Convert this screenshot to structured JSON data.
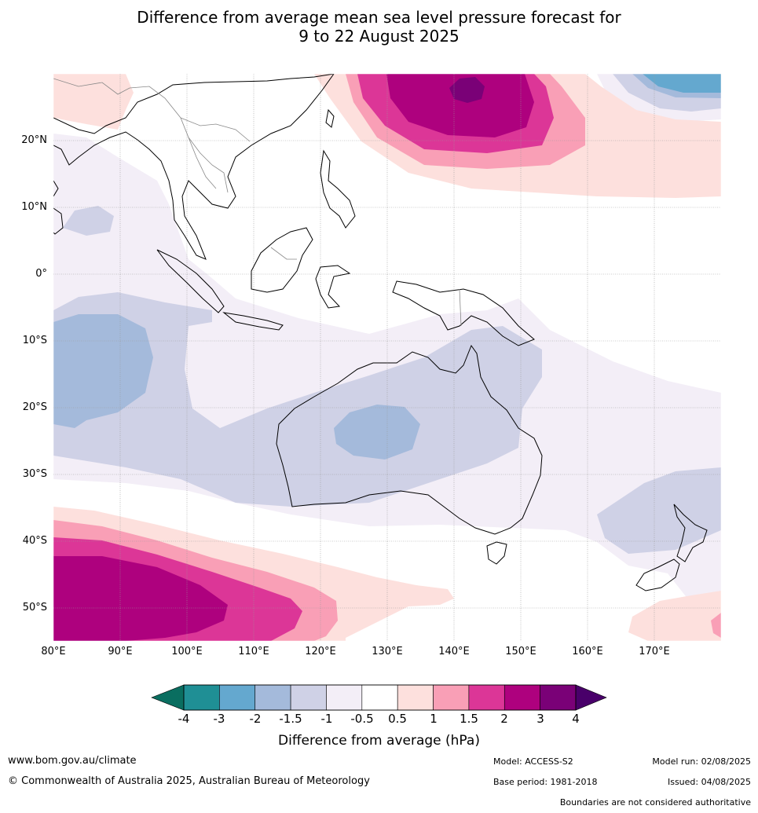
{
  "title": {
    "line1": "Difference from average mean sea level pressure forecast for",
    "line2": "9 to 22 August 2025"
  },
  "map": {
    "lat_labels": [
      "20°N",
      "10°N",
      "0°",
      "10°S",
      "20°S",
      "30°S",
      "40°S",
      "50°S"
    ],
    "lon_labels": [
      "80°E",
      "90°E",
      "100°E",
      "110°E",
      "120°E",
      "130°E",
      "140°E",
      "150°E",
      "160°E",
      "170°E"
    ],
    "extent": {
      "lon": [
        80,
        180
      ],
      "lat": [
        -55,
        30
      ]
    }
  },
  "colorbar": {
    "title": "Difference from average (hPa)",
    "ticks": [
      "-4",
      "-3",
      "-2",
      "-1.5",
      "-1",
      "-0.5",
      "0.5",
      "1",
      "1.5",
      "2",
      "3",
      "4"
    ],
    "colors": [
      "#1f8f95",
      "#64a8cf",
      "#a4badb",
      "#cfd1e6",
      "#f3eef7",
      "#ffffff",
      "#fde0dd",
      "#f99fb6",
      "#dc3697",
      "#ae017e",
      "#7a0177"
    ],
    "under_color": "#0a6e60",
    "over_color": "#49006a"
  },
  "footer": {
    "url": "www.bom.gov.au/climate",
    "copyright": "© Commonwealth of Australia 2025, Australian Bureau of Meteorology",
    "model": "Model: ACCESS-S2",
    "base_period": "Base period: 1981-2018",
    "model_run": "Model run: 02/08/2025",
    "issued": "Issued: 04/08/2025",
    "disclaimer": "Boundaries are not considered authoritative"
  }
}
